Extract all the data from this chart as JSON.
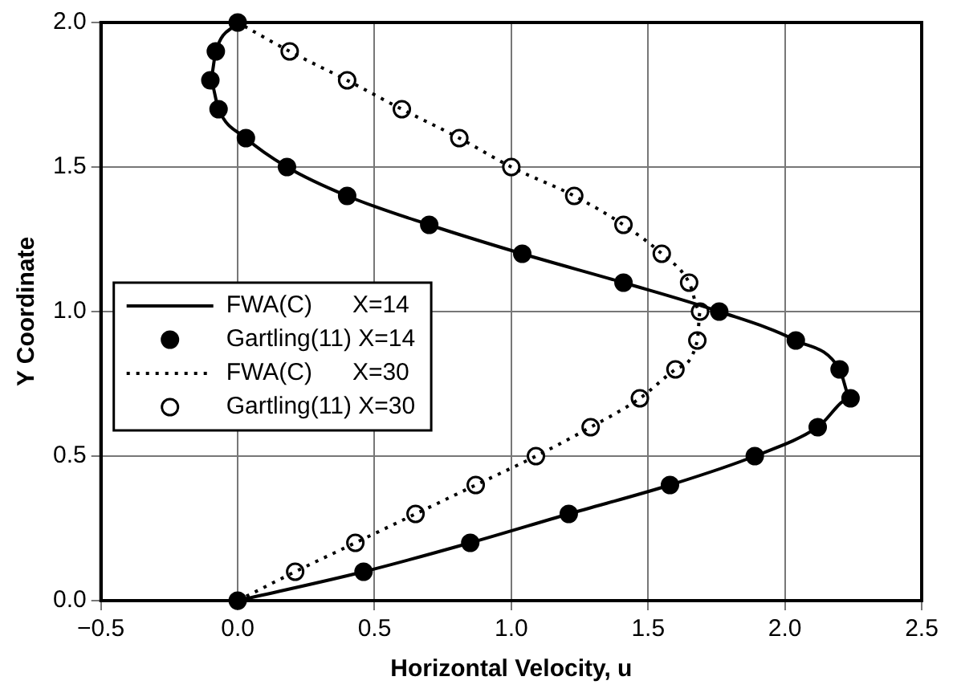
{
  "chart_data": {
    "type": "scatter",
    "xlabel": "Horizontal Velocity, u",
    "ylabel": "Y Coordinate",
    "xlim": [
      -0.5,
      2.5
    ],
    "xticks": [
      {
        "value": -0.5,
        "label": "−0.5"
      },
      {
        "value": 0,
        "label": "0.0"
      },
      {
        "value": 0.5,
        "label": "0.5"
      },
      {
        "value": 1,
        "label": "1.0"
      },
      {
        "value": 1.5,
        "label": "1.5"
      },
      {
        "value": 2,
        "label": "2.0"
      },
      {
        "value": 2.5,
        "label": "2.5"
      }
    ],
    "ylim": [
      0,
      2
    ],
    "yticks": [
      {
        "value": 0,
        "label": "0.0"
      },
      {
        "value": 0.5,
        "label": "0.5"
      },
      {
        "value": 1,
        "label": "1.0"
      },
      {
        "value": 1.5,
        "label": "1.5"
      },
      {
        "value": 2,
        "label": "2.0"
      }
    ],
    "grid": true,
    "legend": "left",
    "series": [
      {
        "name": "FWA(C)      X=14",
        "type": "line",
        "marker": "none",
        "line_style": "solid",
        "color": "#000000",
        "x": [
          0,
          0.46,
          0.85,
          1.21,
          1.58,
          1.89,
          2.12,
          2.24,
          2.2,
          2.04,
          1.76,
          1.41,
          1.04,
          0.7,
          0.4,
          0.18,
          0.03,
          -0.07,
          -0.1,
          -0.08,
          0
        ],
        "values": [
          0,
          0.1,
          0.2,
          0.3,
          0.4,
          0.5,
          0.6,
          0.7,
          0.8,
          0.9,
          1.0,
          1.1,
          1.2,
          1.3,
          1.4,
          1.5,
          1.6,
          1.7,
          1.8,
          1.9,
          2.0
        ]
      },
      {
        "name": "Gartling(11) X=14",
        "type": "scatter",
        "marker": "circle",
        "color": "#000000",
        "x": [
          0,
          0.46,
          0.85,
          1.21,
          1.58,
          1.89,
          2.12,
          2.24,
          2.2,
          2.04,
          1.76,
          1.41,
          1.04,
          0.7,
          0.4,
          0.18,
          0.03,
          -0.07,
          -0.1,
          -0.08,
          0
        ],
        "values": [
          0,
          0.1,
          0.2,
          0.3,
          0.4,
          0.5,
          0.6,
          0.7,
          0.8,
          0.9,
          1.0,
          1.1,
          1.2,
          1.3,
          1.4,
          1.5,
          1.6,
          1.7,
          1.8,
          1.9,
          2.0
        ]
      },
      {
        "name": "FWA(C)      X=30",
        "type": "line",
        "marker": "none",
        "line_style": "dotted",
        "color": "#000000",
        "x": [
          0,
          0.21,
          0.43,
          0.65,
          0.87,
          1.09,
          1.29,
          1.47,
          1.6,
          1.68,
          1.69,
          1.65,
          1.55,
          1.41,
          1.23,
          1.0,
          0.81,
          0.6,
          0.4,
          0.19,
          0
        ],
        "values": [
          0,
          0.1,
          0.2,
          0.3,
          0.4,
          0.5,
          0.6,
          0.7,
          0.8,
          0.9,
          1.0,
          1.1,
          1.2,
          1.3,
          1.4,
          1.5,
          1.6,
          1.7,
          1.8,
          1.9,
          2.0
        ]
      },
      {
        "name": "Gartling(11) X=30",
        "type": "scatter",
        "marker": "circle",
        "color": "#ffffff",
        "x": [
          0.21,
          0.43,
          0.65,
          0.87,
          1.09,
          1.29,
          1.47,
          1.6,
          1.68,
          1.69,
          1.65,
          1.55,
          1.41,
          1.23,
          1.0,
          0.81,
          0.6,
          0.4,
          0.19
        ],
        "values": [
          0.1,
          0.2,
          0.3,
          0.4,
          0.5,
          0.6,
          0.7,
          0.8,
          0.9,
          1.0,
          1.1,
          1.2,
          1.3,
          1.4,
          1.5,
          1.6,
          1.7,
          1.8,
          1.9
        ]
      }
    ]
  }
}
